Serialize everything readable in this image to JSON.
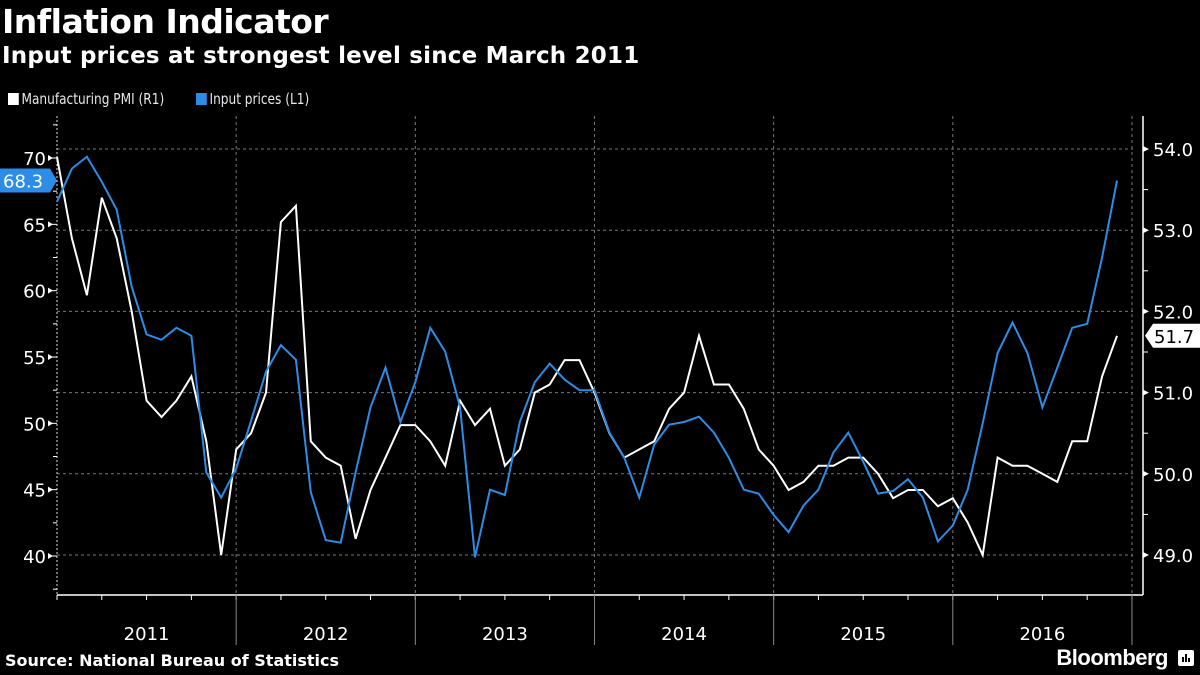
{
  "header": {
    "title": "Inflation Indicator",
    "subtitle": "Input prices at strongest level since March 2011"
  },
  "legend": [
    {
      "label": "Manufacturing PMI (R1)",
      "color": "#ffffff"
    },
    {
      "label": "Input prices  (L1)",
      "color": "#2d8ce6"
    }
  ],
  "footer": {
    "source": "Source: National Bureau of Statistics",
    "brand": "Bloomberg"
  },
  "chart_data": {
    "type": "line",
    "title": "Inflation Indicator",
    "subtitle": "Input prices at strongest level since March 2011",
    "x_frequency": "monthly",
    "x_categories": [
      "2011",
      "2012",
      "2013",
      "2014",
      "2015",
      "2016"
    ],
    "axes": {
      "left": {
        "name": "L1",
        "range": [
          37.3,
          73.0
        ],
        "ticks": [
          40,
          45,
          50,
          55,
          60,
          65,
          70
        ],
        "tick_labels": [
          "40",
          "45",
          "50",
          "55",
          "60",
          "65",
          "70"
        ]
      },
      "right": {
        "name": "R1",
        "range": [
          48.5,
          54.5
        ],
        "ticks": [
          49.0,
          50.0,
          51.0,
          52.0,
          53.0,
          54.0
        ],
        "tick_labels": [
          "49.0",
          "50.0",
          "51.0",
          "52.0",
          "53.0",
          "54.0"
        ]
      }
    },
    "grid": true,
    "legend_position": "top-left",
    "series": [
      {
        "name": "Manufacturing PMI (R1)",
        "axis": "right",
        "color": "#ffffff",
        "last_value_label": "51.7",
        "values": [
          53.9,
          52.9,
          52.2,
          53.4,
          52.9,
          52.0,
          50.9,
          50.7,
          50.9,
          51.2,
          50.4,
          49.0,
          50.3,
          50.5,
          51.0,
          53.1,
          53.3,
          50.4,
          50.2,
          50.1,
          49.2,
          49.8,
          50.2,
          50.6,
          50.6,
          50.4,
          50.1,
          50.9,
          50.6,
          50.8,
          50.1,
          50.3,
          51.0,
          51.1,
          51.4,
          51.4,
          51.0,
          50.5,
          50.2,
          50.3,
          50.4,
          50.8,
          51.0,
          51.7,
          51.1,
          51.1,
          50.8,
          50.3,
          50.1,
          49.8,
          49.9,
          50.1,
          50.1,
          50.2,
          50.2,
          50.0,
          49.7,
          49.8,
          49.8,
          49.6,
          49.7,
          49.4,
          49.0,
          50.2,
          50.1,
          50.1,
          50.0,
          49.9,
          50.4,
          50.4,
          51.2,
          51.7
        ]
      },
      {
        "name": "Input prices (L1)",
        "axis": "left",
        "color": "#2d8ce6",
        "last_value_label": "68.3",
        "values": [
          66.7,
          69.2,
          70.1,
          68.2,
          66.1,
          60.3,
          56.7,
          56.3,
          57.2,
          56.6,
          46.3,
          44.4,
          46.6,
          50.2,
          53.9,
          55.9,
          54.8,
          44.8,
          41.2,
          41.0,
          46.3,
          51.2,
          54.2,
          50.1,
          53.1,
          57.2,
          55.4,
          51.2,
          39.9,
          45.0,
          44.6,
          50.1,
          53.1,
          54.5,
          53.3,
          52.5,
          52.5,
          49.3,
          47.4,
          44.4,
          48.4,
          49.9,
          50.1,
          50.5,
          49.3,
          47.4,
          45.0,
          44.7,
          43.1,
          41.8,
          43.8,
          45.0,
          47.8,
          49.3,
          47.1,
          44.7,
          44.9,
          45.8,
          44.4,
          41.1,
          42.3,
          45.0,
          50.0,
          55.3,
          57.6,
          55.3,
          51.2,
          54.2,
          57.2,
          57.5,
          62.5,
          68.3
        ]
      }
    ]
  }
}
